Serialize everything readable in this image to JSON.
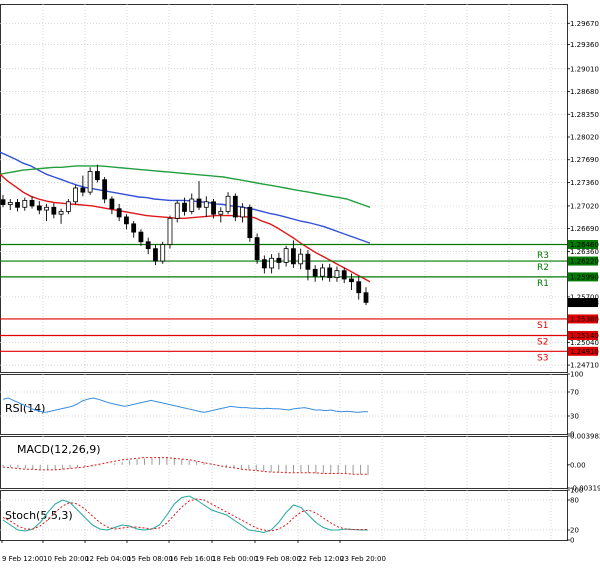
{
  "chart_data": [
    {
      "type": "candlestick",
      "panel": "price",
      "ylim": [
        1.2461,
        1.2995
      ],
      "y_ticks": [
        "1.29670",
        "1.29360",
        "1.29010",
        "1.28680",
        "1.28350",
        "1.28020",
        "1.27690",
        "1.27360",
        "1.27020",
        "1.26690",
        "1.26360",
        "1.25700",
        "1.25040",
        "1.24710"
      ],
      "price_tags": [
        {
          "text": "1.26460",
          "value": 1.2646,
          "color": "#007a00"
        },
        {
          "text": "1.26220",
          "value": 1.2622,
          "color": "#007a00"
        },
        {
          "text": "1.25990",
          "value": 1.2599,
          "color": "#007a00"
        },
        {
          "text": "1.25618",
          "value": 1.25618,
          "color": "#000000"
        },
        {
          "text": "1.25380",
          "value": 1.2538,
          "color": "#e00000"
        },
        {
          "text": "1.25140",
          "value": 1.2514,
          "color": "#e00000"
        },
        {
          "text": "1.24910",
          "value": 1.2491,
          "color": "#e00000"
        }
      ],
      "levels": [
        {
          "name": "",
          "value": 1.2646,
          "color": "#007a00"
        },
        {
          "name": "R3",
          "value": 1.2622,
          "color": "#007a00"
        },
        {
          "name": "R2",
          "value": 1.2622,
          "color": "#007a00"
        },
        {
          "name": "R1",
          "value": 1.2599,
          "color": "#007a00"
        },
        {
          "name": "S1",
          "value": 1.2538,
          "color": "#e00000"
        },
        {
          "name": "S2",
          "value": 1.2514,
          "color": "#e00000"
        },
        {
          "name": "S3",
          "value": 1.2491,
          "color": "#e00000"
        }
      ],
      "candles": [
        [
          1.2711,
          1.2718,
          1.27,
          1.2704
        ],
        [
          1.2704,
          1.2712,
          1.2696,
          1.2707
        ],
        [
          1.2707,
          1.2712,
          1.2694,
          1.27
        ],
        [
          1.27,
          1.2714,
          1.2695,
          1.271
        ],
        [
          1.271,
          1.2716,
          1.2698,
          1.2702
        ],
        [
          1.2702,
          1.2709,
          1.269,
          1.2696
        ],
        [
          1.2696,
          1.2705,
          1.268,
          1.27
        ],
        [
          1.27,
          1.2706,
          1.2684,
          1.269
        ],
        [
          1.269,
          1.2698,
          1.2676,
          1.2694
        ],
        [
          1.2694,
          1.2712,
          1.269,
          1.2708
        ],
        [
          1.2708,
          1.2732,
          1.2704,
          1.2728
        ],
        [
          1.2728,
          1.2746,
          1.2716,
          1.2722
        ],
        [
          1.2722,
          1.2758,
          1.2718,
          1.2752
        ],
        [
          1.2752,
          1.2762,
          1.2736,
          1.274
        ],
        [
          1.274,
          1.2744,
          1.2706,
          1.2712
        ],
        [
          1.2712,
          1.2716,
          1.269,
          1.2698
        ],
        [
          1.2698,
          1.2705,
          1.268,
          1.2686
        ],
        [
          1.2686,
          1.269,
          1.2668,
          1.2676
        ],
        [
          1.2676,
          1.268,
          1.2656,
          1.2664
        ],
        [
          1.2664,
          1.2668,
          1.2644,
          1.265
        ],
        [
          1.265,
          1.2656,
          1.2632,
          1.264
        ],
        [
          1.264,
          1.2646,
          1.2616,
          1.2622
        ],
        [
          1.2622,
          1.265,
          1.2618,
          1.2646
        ],
        [
          1.2646,
          1.2688,
          1.264,
          1.2684
        ],
        [
          1.2684,
          1.271,
          1.2678,
          1.2706
        ],
        [
          1.2706,
          1.2714,
          1.2688,
          1.2694
        ],
        [
          1.2694,
          1.272,
          1.269,
          1.2712
        ],
        [
          1.2712,
          1.2738,
          1.2696,
          1.27
        ],
        [
          1.27,
          1.2716,
          1.2686,
          1.2708
        ],
        [
          1.2708,
          1.2712,
          1.2684,
          1.269
        ],
        [
          1.269,
          1.27,
          1.2678,
          1.2694
        ],
        [
          1.2694,
          1.2722,
          1.269,
          1.2716
        ],
        [
          1.2716,
          1.272,
          1.268,
          1.2686
        ],
        [
          1.2686,
          1.2706,
          1.2678,
          1.27
        ],
        [
          1.27,
          1.2704,
          1.265,
          1.2656
        ],
        [
          1.2656,
          1.2662,
          1.2618,
          1.2624
        ],
        [
          1.2624,
          1.263,
          1.2604,
          1.2612
        ],
        [
          1.2612,
          1.2632,
          1.2604,
          1.2626
        ],
        [
          1.2626,
          1.2634,
          1.261,
          1.262
        ],
        [
          1.262,
          1.2644,
          1.2614,
          1.264
        ],
        [
          1.264,
          1.2652,
          1.2612,
          1.2618
        ],
        [
          1.2618,
          1.264,
          1.261,
          1.2632
        ],
        [
          1.2632,
          1.2638,
          1.2594,
          1.261
        ],
        [
          1.261,
          1.2616,
          1.2592,
          1.26
        ],
        [
          1.26,
          1.2618,
          1.2594,
          1.2612
        ],
        [
          1.2612,
          1.2618,
          1.2592,
          1.2598
        ],
        [
          1.2598,
          1.2614,
          1.2592,
          1.2608
        ],
        [
          1.2608,
          1.2612,
          1.259,
          1.2596
        ],
        [
          1.2596,
          1.2604,
          1.258,
          1.2592
        ],
        [
          1.2592,
          1.26,
          1.2566,
          1.2576
        ],
        [
          1.2576,
          1.2584,
          1.2558,
          1.2562
        ]
      ],
      "series": [
        {
          "color": "#3050d8",
          "values": [
            1.278,
            1.2775,
            1.277,
            1.2764,
            1.276,
            1.2754,
            1.2748,
            1.2744,
            1.274,
            1.2736,
            1.2732,
            1.2729,
            1.2727,
            1.2725,
            1.2723,
            1.2721,
            1.2719,
            1.2717,
            1.2715,
            1.2714,
            1.2712,
            1.2711,
            1.271,
            1.271,
            1.271,
            1.2709,
            1.2708,
            1.2707,
            1.2705,
            1.2704,
            1.2702,
            1.2701,
            1.2699,
            1.2697,
            1.2694,
            1.2691,
            1.2689,
            1.2686,
            1.2683,
            1.268,
            1.2678,
            1.2675,
            1.2672,
            1.2668,
            1.2664,
            1.266,
            1.2656,
            1.2652,
            1.2648
          ]
        },
        {
          "color": "#23a040",
          "values": [
            1.2748,
            1.275,
            1.2752,
            1.2754,
            1.2755,
            1.2756,
            1.2757,
            1.2758,
            1.2758,
            1.2759,
            1.276,
            1.276,
            1.276,
            1.276,
            1.2759,
            1.2758,
            1.2757,
            1.2756,
            1.2755,
            1.2754,
            1.2753,
            1.2752,
            1.2751,
            1.275,
            1.2749,
            1.2748,
            1.2747,
            1.2746,
            1.2745,
            1.2744,
            1.2742,
            1.274,
            1.2738,
            1.2736,
            1.2734,
            1.2732,
            1.273,
            1.2728,
            1.2726,
            1.2724,
            1.2722,
            1.272,
            1.2718,
            1.2716,
            1.2714,
            1.2712,
            1.2708,
            1.2704,
            1.27
          ]
        },
        {
          "color": "#e01818",
          "values": [
            1.2748,
            1.2738,
            1.273,
            1.2722,
            1.2716,
            1.2712,
            1.2709,
            1.2707,
            1.2706,
            1.2705,
            1.2704,
            1.2703,
            1.2702,
            1.27,
            1.2698,
            1.2696,
            1.2694,
            1.2692,
            1.269,
            1.2688,
            1.2687,
            1.2686,
            1.2685,
            1.2684,
            1.2684,
            1.2685,
            1.2686,
            1.2687,
            1.2688,
            1.2688,
            1.2688,
            1.2687,
            1.2686,
            1.2685,
            1.268,
            1.2676,
            1.267,
            1.2663,
            1.2656,
            1.2648,
            1.2641,
            1.2634,
            1.2628,
            1.2622,
            1.2616,
            1.261,
            1.2604,
            1.2598,
            1.2592
          ]
        }
      ]
    },
    {
      "type": "line",
      "panel": "rsi",
      "title": "RSI(14)",
      "ylim": [
        0,
        100
      ],
      "y_ticks": [
        "100",
        "70",
        "30",
        "0"
      ],
      "values": [
        58,
        60,
        56,
        52,
        48,
        44,
        40,
        38,
        36,
        38,
        40,
        42,
        44,
        46,
        50,
        55,
        58,
        60,
        58,
        55,
        52,
        50,
        48,
        46,
        48,
        50,
        52,
        54,
        56,
        54,
        52,
        50,
        48,
        46,
        44,
        42,
        40,
        38,
        36,
        38,
        40,
        42,
        44,
        46,
        45,
        44,
        44,
        43,
        43,
        42,
        43,
        42,
        42,
        41,
        40,
        42,
        43,
        44,
        42,
        40,
        40,
        39,
        40,
        38,
        37,
        38,
        37,
        36,
        37,
        37
      ]
    },
    {
      "type": "bar+line",
      "panel": "macd",
      "title": "MACD(12,26,9)",
      "ylim": [
        -0.003195,
        0.003982
      ],
      "y_ticks": [
        "0.003982",
        "0.00",
        "-0.003195"
      ],
      "histogram": [
        -0.0002,
        -0.0003,
        -0.0004,
        -0.0005,
        -0.0006,
        -0.0006,
        -0.0007,
        -0.0007,
        -0.0006,
        -0.0005,
        -0.0004,
        -0.0003,
        -0.0002,
        -0.0001,
        0.0,
        0.0002,
        0.0004,
        0.0006,
        0.0008,
        0.0009,
        0.001,
        0.0011,
        0.0011,
        0.001,
        0.0008,
        0.0006,
        0.0005,
        0.0003,
        0.0001,
        -0.0001,
        -0.0003,
        -0.0005,
        -0.0006,
        -0.0007,
        -0.0008,
        -0.0009,
        -0.001,
        -0.0011,
        -0.0011,
        -0.001,
        -0.001,
        -0.0011,
        -0.0012,
        -0.0012,
        -0.0012,
        -0.0012,
        -0.0012,
        -0.0013,
        -0.0013,
        -0.0014
      ],
      "signal": [
        -0.0003,
        -0.0004,
        -0.0005,
        -0.0006,
        -0.0006,
        -0.0007,
        -0.0007,
        -0.0007,
        -0.0006,
        -0.0005,
        -0.0004,
        -0.0003,
        -0.0001,
        0.0001,
        0.0003,
        0.0005,
        0.0007,
        0.0008,
        0.0009,
        0.001,
        0.001,
        0.001,
        0.001,
        0.0009,
        0.0008,
        0.0007,
        0.0005,
        0.0003,
        0.0001,
        -0.0001,
        -0.0003,
        -0.0004,
        -0.0006,
        -0.0007,
        -0.0008,
        -0.0009,
        -0.001,
        -0.001,
        -0.0011,
        -0.0011,
        -0.0011,
        -0.0011,
        -0.0011,
        -0.0012,
        -0.0012,
        -0.0012,
        -0.0012,
        -0.0013,
        -0.0013,
        -0.0013
      ]
    },
    {
      "type": "line",
      "panel": "stoch",
      "title": "Stoch(5,5,3)",
      "ylim": [
        0,
        100
      ],
      "y_ticks": [
        "100",
        "80",
        "20",
        "0"
      ],
      "main": [
        40,
        30,
        20,
        18,
        22,
        35,
        55,
        72,
        80,
        75,
        60,
        45,
        30,
        22,
        20,
        25,
        30,
        28,
        22,
        20,
        22,
        30,
        50,
        72,
        85,
        88,
        80,
        70,
        60,
        55,
        50,
        40,
        30,
        20,
        18,
        15,
        20,
        35,
        55,
        70,
        65,
        50,
        35,
        25,
        20,
        20,
        22,
        21,
        20,
        20
      ],
      "signal": [
        45,
        38,
        28,
        22,
        22,
        28,
        40,
        55,
        68,
        75,
        72,
        62,
        48,
        35,
        26,
        22,
        24,
        26,
        26,
        24,
        22,
        24,
        34,
        50,
        66,
        78,
        82,
        80,
        72,
        64,
        56,
        48,
        40,
        32,
        24,
        20,
        18,
        22,
        30,
        44,
        56,
        60,
        54,
        44,
        34,
        26,
        22,
        21,
        21,
        21
      ]
    }
  ],
  "x_axis": {
    "labels": [
      "9 Feb 12:00",
      "10 Feb 20:00",
      "12 Feb 04:00",
      "15 Feb 08:00",
      "16 Feb 16:00",
      "18 Feb 00:00",
      "19 Feb 08:00",
      "22 Feb 12:00",
      "23 Feb 20:00"
    ]
  }
}
